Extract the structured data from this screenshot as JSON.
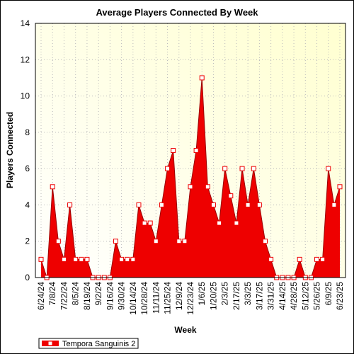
{
  "chart_data": {
    "type": "area",
    "title": "Average Players Connected By Week",
    "x_label": "Week",
    "y_label": "Players Connected",
    "categories": [
      "6/24/24",
      null,
      "7/8/24",
      null,
      "7/22/24",
      null,
      "8/5/24",
      null,
      "8/19/24",
      null,
      "9/2/24",
      null,
      "9/16/24",
      null,
      "9/30/24",
      null,
      "10/14/24",
      null,
      "10/28/24",
      null,
      "11/11/24",
      null,
      "11/25/24",
      null,
      "12/9/24",
      null,
      "12/23/24",
      null,
      "1/6/25",
      null,
      "1/20/25",
      null,
      "2/3/25",
      null,
      "2/17/25",
      null,
      "3/3/25",
      null,
      "3/17/25",
      null,
      "3/31/25",
      null,
      "4/14/25",
      null,
      "4/28/25",
      null,
      "5/12/25",
      null,
      "5/26/25",
      null,
      "6/9/25",
      null,
      "6/23/25"
    ],
    "series": [
      {
        "name": "Tempora Sanguinis 2",
        "color": "#ee0000",
        "values": [
          1,
          0,
          5,
          2,
          1,
          4,
          1,
          1,
          1,
          0,
          0,
          0,
          0,
          2,
          1,
          1,
          1,
          4,
          3,
          3,
          2,
          4,
          6,
          7,
          2,
          2,
          5,
          7,
          11,
          5,
          4,
          3,
          6,
          4.5,
          3,
          6,
          4,
          6,
          4,
          2,
          1,
          0,
          0,
          0,
          0,
          1,
          0,
          0,
          1,
          1,
          6,
          4,
          5
        ]
      }
    ],
    "ylim": [
      0,
      14
    ],
    "yticks": [
      0,
      2,
      4,
      6,
      8,
      10,
      12,
      14
    ],
    "grid": true
  }
}
